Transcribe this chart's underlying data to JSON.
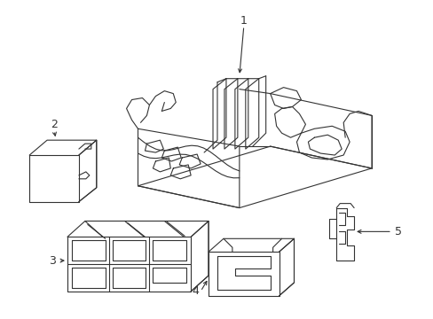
{
  "bg": "#ffffff",
  "lc": "#333333",
  "lw": 0.8,
  "fig_w": 4.89,
  "fig_h": 3.6,
  "dpi": 100
}
